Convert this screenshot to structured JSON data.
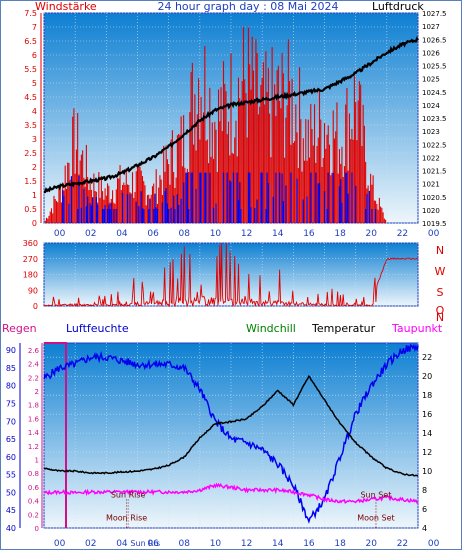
{
  "header": {
    "left_label": "Windstärke",
    "title": "24 hour graph day : 08 Mai 2024",
    "right_label": "Luftdruck"
  },
  "colors": {
    "frame": "#1f3fbf",
    "grad_top": "#0d7fd2",
    "grad_bottom": "#eef6fb",
    "red": "#e00000",
    "blue": "#0000ee",
    "black": "#000000",
    "magenta": "#ff00ff",
    "green": "#008000",
    "pink_frame": "#d0108a",
    "darkred": "#7a0000"
  },
  "chart_data": [
    {
      "type": "bar",
      "title": "24 hour graph day : 08 Mai 2024",
      "x_ticks": [
        "00",
        "02",
        "04",
        "06",
        "08",
        "10",
        "12",
        "14",
        "16",
        "18",
        "20",
        "22",
        "00"
      ],
      "series": [
        {
          "name": "Windstärke",
          "axis": "left",
          "ylim": [
            0,
            7.5
          ],
          "ticks": [
            "0",
            "0.5",
            "1",
            "1.5",
            "2",
            "2.5",
            "3",
            "3.5",
            "4",
            "4.5",
            "5",
            "5.5",
            "6",
            "6.5",
            "7",
            "7.5"
          ],
          "x": [
            0,
            1,
            2,
            3,
            4,
            5,
            6,
            7,
            8,
            9,
            10,
            11,
            12,
            13,
            14,
            15,
            16,
            17,
            18,
            19,
            20,
            21,
            22,
            23,
            24
          ],
          "values": [
            0,
            1.5,
            4,
            2,
            1.5,
            2,
            2,
            1.5,
            3,
            4,
            7.5,
            5,
            6,
            7,
            5.5,
            6,
            6,
            4,
            5,
            4,
            6,
            1.8,
            0,
            0,
            0
          ]
        },
        {
          "name": "Luftdruck",
          "axis": "right",
          "ylim": [
            1019.5,
            1027.5
          ],
          "ticks": [
            "1019.5",
            "1020",
            "1020.5",
            "1021",
            "1021.5",
            "1022",
            "1022.5",
            "1023",
            "1023.5",
            "1024",
            "1024.5",
            "1025",
            "1025.5",
            "1026",
            "1026.5",
            "1027",
            "1027.5"
          ],
          "x": [
            0,
            1,
            2,
            3,
            4,
            5,
            6,
            7,
            8,
            9,
            10,
            11,
            12,
            13,
            14,
            15,
            16,
            17,
            18,
            19,
            20,
            21,
            22,
            23,
            24
          ],
          "values": [
            1020.7,
            1020.9,
            1021.0,
            1021.1,
            1021.2,
            1021.4,
            1021.7,
            1022.0,
            1022.4,
            1022.9,
            1023.4,
            1023.8,
            1024.0,
            1024.1,
            1024.2,
            1024.3,
            1024.4,
            1024.5,
            1024.6,
            1024.9,
            1025.2,
            1025.6,
            1026.0,
            1026.3,
            1026.5
          ]
        }
      ]
    },
    {
      "type": "line",
      "series_name": "Windrichtung",
      "y_ticks": [
        "0",
        "90",
        "180",
        "270",
        "360"
      ],
      "ylim": [
        0,
        360
      ],
      "compass": [
        "N",
        "W",
        "S",
        "O",
        "N"
      ],
      "x": [
        0,
        2,
        4,
        6,
        8,
        10,
        12,
        14,
        16,
        18,
        20,
        21,
        22,
        24
      ],
      "values": [
        20,
        60,
        30,
        90,
        150,
        250,
        200,
        150,
        100,
        60,
        30,
        30,
        270,
        270
      ]
    },
    {
      "type": "line",
      "legend": {
        "regen": "Regen",
        "luftfeuchte": "Luftfeuchte",
        "windchill": "Windchill",
        "temperatur": "Temperatur",
        "taupunkt": "Taupunkt"
      },
      "x_ticks": [
        "00",
        "02",
        "04",
        "06",
        "08",
        "10",
        "12",
        "14",
        "16",
        "18",
        "20",
        "22",
        "00"
      ],
      "humidity_ticks": [
        "40",
        "45",
        "50",
        "55",
        "60",
        "65",
        "70",
        "75",
        "80",
        "85",
        "90"
      ],
      "humidity_lim": [
        40,
        92
      ],
      "rain_ticks": [
        "0",
        "0.2",
        "0.4",
        "0.6",
        "0.8",
        "1",
        "1.2",
        "1.4",
        "1.6",
        "1.8",
        "2",
        "2.2",
        "2.4",
        "2.6"
      ],
      "rain_lim": [
        0,
        2.7
      ],
      "temp_ticks": [
        "4",
        "6",
        "8",
        "10",
        "12",
        "14",
        "16",
        "18",
        "20",
        "22"
      ],
      "temp_lim": [
        4,
        23.5
      ],
      "x": [
        0,
        1,
        2,
        3,
        4,
        5,
        6,
        7,
        8,
        9,
        10,
        11,
        12,
        13,
        14,
        15,
        16,
        17,
        18,
        19,
        20,
        21,
        22,
        23,
        24
      ],
      "humidity": [
        82,
        85,
        86,
        88,
        88,
        87,
        86,
        86,
        86,
        85,
        79,
        70,
        65,
        64,
        62,
        58,
        52,
        42,
        48,
        60,
        72,
        80,
        86,
        90,
        91
      ],
      "temperature": [
        10.3,
        10.0,
        10.0,
        9.8,
        9.8,
        9.9,
        10.0,
        10.2,
        10.6,
        11.5,
        13.5,
        15.0,
        15.2,
        15.5,
        16.8,
        18.5,
        17.0,
        20.0,
        17.5,
        15.0,
        13.0,
        11.5,
        10.3,
        9.7,
        9.5
      ],
      "dewpoint": [
        7.7,
        7.8,
        7.7,
        7.8,
        7.8,
        7.8,
        7.8,
        7.8,
        7.8,
        7.8,
        8.0,
        8.5,
        8.3,
        8.0,
        8.0,
        8.0,
        7.8,
        7.5,
        7.0,
        6.8,
        6.8,
        7.0,
        7.2,
        7.0,
        6.8
      ],
      "rain_marker": {
        "x_start": -0.1,
        "x_end": 0.1,
        "value": 2.7
      },
      "events": [
        {
          "label": "Sun Rise",
          "x": 5.4
        },
        {
          "label": "Moon Rise",
          "x": 5.3
        },
        {
          "label": "Sun Set",
          "x": 21.3
        },
        {
          "label": "Moon Set",
          "x": 21.3
        }
      ],
      "extra_labels": [
        "Sun Ris"
      ]
    }
  ]
}
